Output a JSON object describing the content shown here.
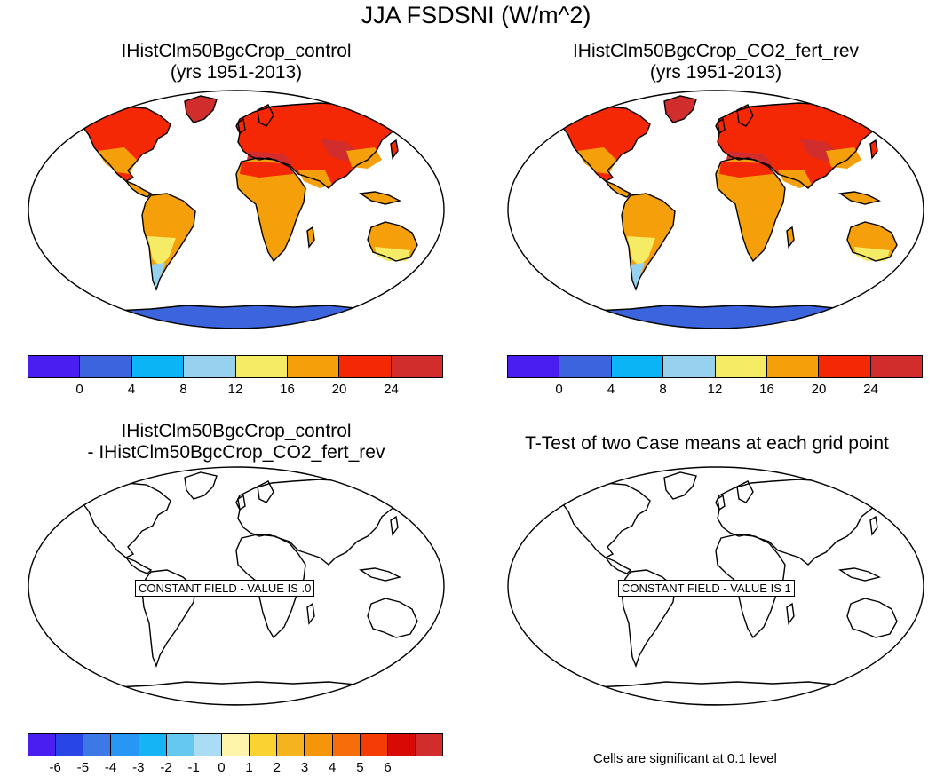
{
  "title": "JJA FSDSNI (W/m^2)",
  "panels": [
    {
      "title1": "IHistClm50BgcCrop_control",
      "title2": "(yrs 1951-2013)",
      "type": "filled"
    },
    {
      "title1": "IHistClm50BgcCrop_CO2_fert_rev",
      "title2": "(yrs 1951-2013)",
      "type": "filled"
    },
    {
      "title1": "IHistClm50BgcCrop_control",
      "title2": "- IHistClm50BgcCrop_CO2_fert_rev",
      "type": "constant",
      "message": "CONSTANT FIELD - VALUE IS .0"
    },
    {
      "title1": "T-Test of two Case means at each grid point",
      "title2": "",
      "type": "constant",
      "message": "CONSTANT FIELD - VALUE IS 1"
    }
  ],
  "colorbar_top": {
    "colors": [
      "#4a1ef0",
      "#3c64dc",
      "#0ab4f5",
      "#96d2f0",
      "#f5eb64",
      "#f5a00a",
      "#f52805",
      "#d22d2d"
    ],
    "labels": [
      "0",
      "4",
      "8",
      "12",
      "16",
      "20",
      "24"
    ]
  },
  "colorbar_bottom": {
    "colors": [
      "#4a1ef0",
      "#2846e6",
      "#3c78e6",
      "#2896f5",
      "#14b4f5",
      "#64c8f0",
      "#aadcf5",
      "#fff5aa",
      "#fad232",
      "#f5b41e",
      "#f5960a",
      "#f56e0a",
      "#f53c05",
      "#d70a05",
      "#d22d2d"
    ],
    "labels": [
      "-6",
      "-5",
      "-4",
      "-3",
      "-2",
      "-1",
      "0",
      "1",
      "2",
      "3",
      "4",
      "5",
      "6"
    ]
  },
  "note": "Cells are significant at 0.1 level"
}
